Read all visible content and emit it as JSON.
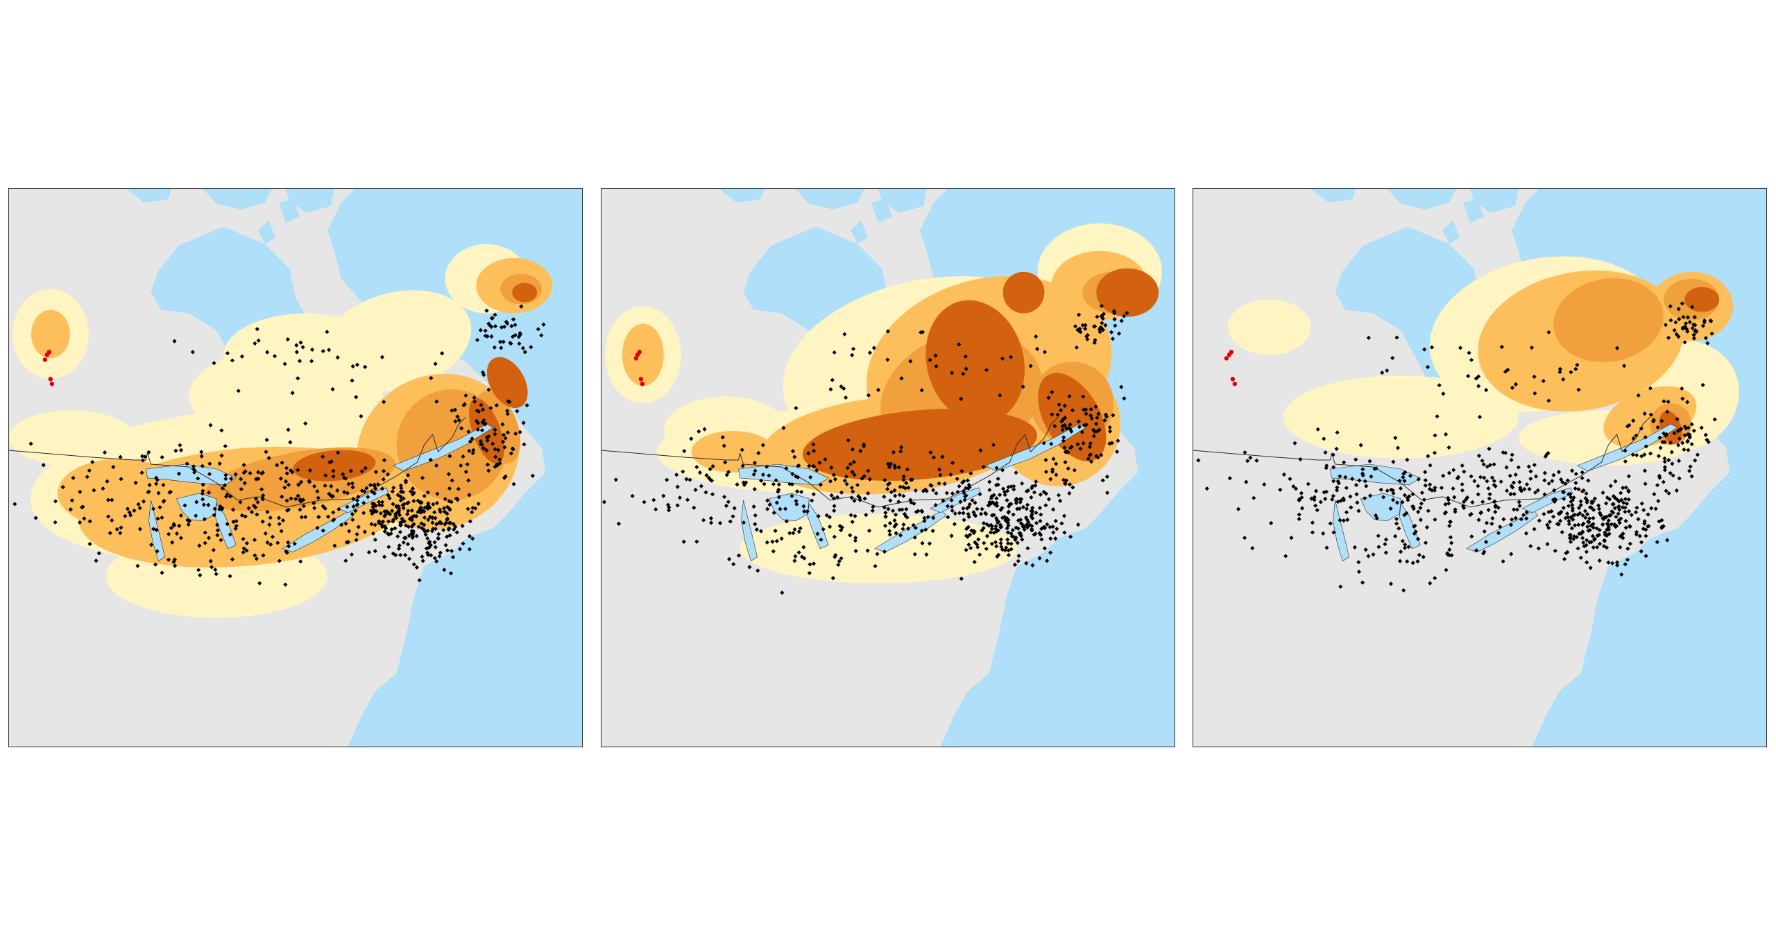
{
  "figure": {
    "panel_count": 3,
    "colors": {
      "land": "#e6e6e6",
      "water": "#b0dffa",
      "border_line": "#2b2b2b",
      "suitability_low": "#fef5c2",
      "suitability_medium": "#fcbf5c",
      "suitability_high": "#f0a03c",
      "suitability_very_high": "#d2620f",
      "occurrence_points": "#000000",
      "highlighted_points": "#e00000"
    }
  },
  "panels": [
    {
      "id": "panel-0",
      "suitability_scenario": "current",
      "points_shown": true
    },
    {
      "id": "panel-1",
      "suitability_scenario": "shifted-north",
      "points_shown": true
    },
    {
      "id": "panel-2",
      "suitability_scenario": "far-north",
      "points_shown": true
    }
  ]
}
